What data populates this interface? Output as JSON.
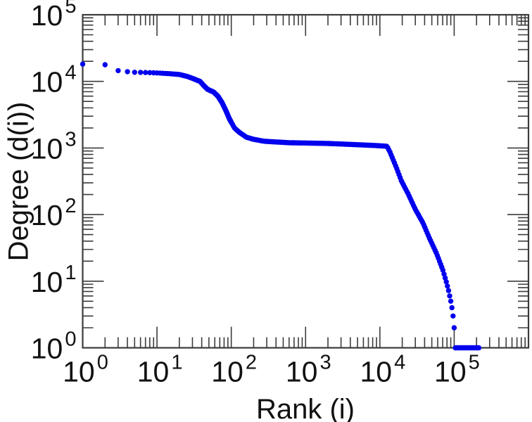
{
  "chart_data": {
    "type": "scatter",
    "title": "",
    "xlabel": "Rank (i)",
    "ylabel": "Degree (d(i))",
    "x_scale": "log",
    "y_scale": "log",
    "xlim": [
      1,
      1000000
    ],
    "ylim": [
      1,
      100000
    ],
    "x_tick_exponents": [
      0,
      1,
      2,
      3,
      4,
      5
    ],
    "y_tick_exponents": [
      0,
      1,
      2,
      3,
      4,
      5
    ],
    "tick_base": 10,
    "grid": false,
    "legend": false,
    "marker": {
      "shape": "circle",
      "color": "#0000ee",
      "radius_px": 3.7
    },
    "axis_color": "#3c3c3c",
    "text_color": "#111111",
    "series": [
      {
        "name": "degree-vs-rank",
        "description": "Dense blue rank-degree curve; anchor points (rank, degree) read from the plot. Markers are drawn at integer ranks 1-99 then log-spaced ranks up to 215000, interpolated log-log between anchors; degrees below 6.5 round to integers giving discrete tail dots at 5,4,3,2 and a flat run at degree 1.",
        "anchor_points_rank_degree": [
          [
            1,
            18200
          ],
          [
            2,
            17800
          ],
          [
            3,
            14500
          ],
          [
            4,
            14000
          ],
          [
            5,
            13700
          ],
          [
            7,
            13600
          ],
          [
            10,
            13400
          ],
          [
            14,
            13100
          ],
          [
            20,
            12700
          ],
          [
            26,
            11800
          ],
          [
            32,
            10800
          ],
          [
            38,
            10000
          ],
          [
            42,
            8800
          ],
          [
            48,
            7600
          ],
          [
            58,
            6900
          ],
          [
            66,
            6000
          ],
          [
            75,
            4800
          ],
          [
            85,
            3600
          ],
          [
            95,
            2700
          ],
          [
            110,
            2000
          ],
          [
            130,
            1700
          ],
          [
            160,
            1450
          ],
          [
            200,
            1350
          ],
          [
            280,
            1260
          ],
          [
            600,
            1200
          ],
          [
            2000,
            1170
          ],
          [
            6000,
            1110
          ],
          [
            10000,
            1080
          ],
          [
            12500,
            1060
          ],
          [
            13800,
            850
          ],
          [
            15500,
            620
          ],
          [
            17000,
            480
          ],
          [
            19500,
            320
          ],
          [
            24000,
            205
          ],
          [
            30000,
            120
          ],
          [
            38000,
            75
          ],
          [
            47000,
            43
          ],
          [
            58000,
            26
          ],
          [
            70000,
            15
          ],
          [
            79000,
            9.5
          ],
          [
            86000,
            6.5
          ],
          [
            90000,
            5.2
          ],
          [
            93000,
            4
          ],
          [
            95500,
            3
          ],
          [
            97500,
            2.2
          ],
          [
            103000,
            1.4
          ],
          [
            107000,
            1
          ],
          [
            215000,
            1
          ]
        ]
      }
    ]
  }
}
